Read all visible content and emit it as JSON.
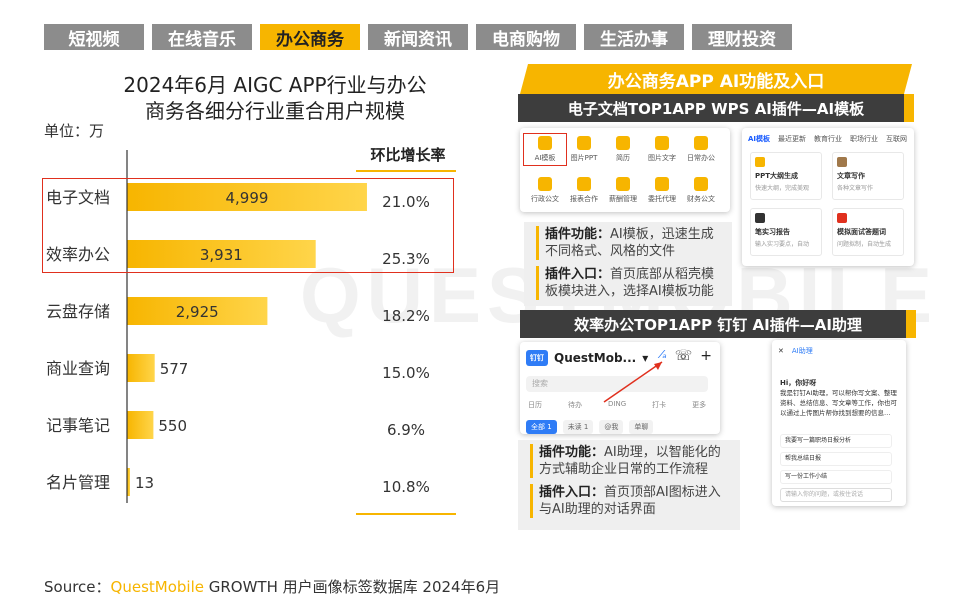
{
  "tabs": [
    "短视频",
    "在线音乐",
    "办公商务",
    "新闻资讯",
    "电商购物",
    "生活办事",
    "理财投资"
  ],
  "active_tab_index": 2,
  "colors": {
    "accent": "#f7b500",
    "bar_fill": "#f7b500",
    "highlight": "#e0301e",
    "dark_header": "#3d3d3d",
    "tab_inactive": "#8c8c8c"
  },
  "watermark": "QUESTMOBILE",
  "chart_data": {
    "type": "bar",
    "orientation": "horizontal",
    "title_line1": "2024年6月 AIGC APP行业与办公",
    "title_line2": "商务各细分行业重合用户规模",
    "unit_label": "单位：万",
    "categories": [
      "电子文档",
      "效率办公",
      "云盘存储",
      "商业查询",
      "记事笔记",
      "名片管理"
    ],
    "values": [
      4999,
      3931,
      2925,
      577,
      550,
      13
    ],
    "value_labels": [
      "4,999",
      "3,931",
      "2,925",
      "577",
      "550",
      "13"
    ],
    "growth_header": "环比增长率",
    "growth_rates": [
      "21.0%",
      "25.3%",
      "18.2%",
      "15.0%",
      "6.9%",
      "10.8%"
    ],
    "highlighted_categories": [
      "电子文档",
      "效率办公"
    ],
    "xlim": [
      0,
      5500
    ]
  },
  "right_panel": {
    "banner": "办公商务APP AI功能及入口",
    "section1": {
      "header": "电子文档TOP1APP WPS AI插件—AI模板",
      "grid_items": [
        "AI模板",
        "图片PPT",
        "简历",
        "图片文字",
        "日常办公",
        "行政公文",
        "报表合作",
        "薪酬管理",
        "委托代理",
        "财务公文"
      ],
      "tabs": [
        "AI模板",
        "最近更新",
        "教育行业",
        "职场行业",
        "互联网"
      ],
      "cards": [
        {
          "title": "PPT大纲生成",
          "sub": "快速大纲，完成美观"
        },
        {
          "title": "文章写作",
          "sub": "各种文章写作"
        },
        {
          "title": "笔实习报告",
          "sub": "输入实习要点，自动"
        },
        {
          "title": "模拟面试答题词",
          "sub": "问题拟制，自动生成"
        }
      ],
      "feature_label": "插件功能：",
      "feature_text": "AI模板，迅速生成不同格式、风格的文件",
      "entry_label": "插件入口：",
      "entry_text": "首页底部从稻壳模板模块进入，选择AI模板功能"
    },
    "section2": {
      "header": "效率办公TOP1APP 钉钉 AI插件—AI助理",
      "app_name": "QuestMob...",
      "logo_text": "钉钉",
      "search_placeholder": "搜索",
      "row_items": [
        "日历",
        "待办",
        "DING",
        "打卡",
        "更多"
      ],
      "chips": [
        "全部 1",
        "未读 1",
        "@我",
        "单聊"
      ],
      "ai_title": "AI助理",
      "ai_greeting": "Hi，你好呀",
      "ai_text": "我是钉钉AI助理，可以帮你写文案、整理资料、总结信息、写文章等工作，你也可以通过上传图片帮你找到想要的信息…",
      "ai_suggestions": [
        "我要写一篇职场日报分析",
        "帮我总结日报",
        "写一份工作小结"
      ],
      "ai_input": "请输入你的问题，或按住说话",
      "feature_label": "插件功能：",
      "feature_text": "AI助理，以智能化的方式辅助企业日常的工作流程",
      "entry_label": "插件入口：",
      "entry_text": "首页顶部AI图标进入与AI助理的对话界面"
    }
  },
  "source": {
    "prefix": "Source：",
    "brand": "QuestMobile",
    "suffix": " GROWTH 用户画像标签数据库 2024年6月"
  }
}
